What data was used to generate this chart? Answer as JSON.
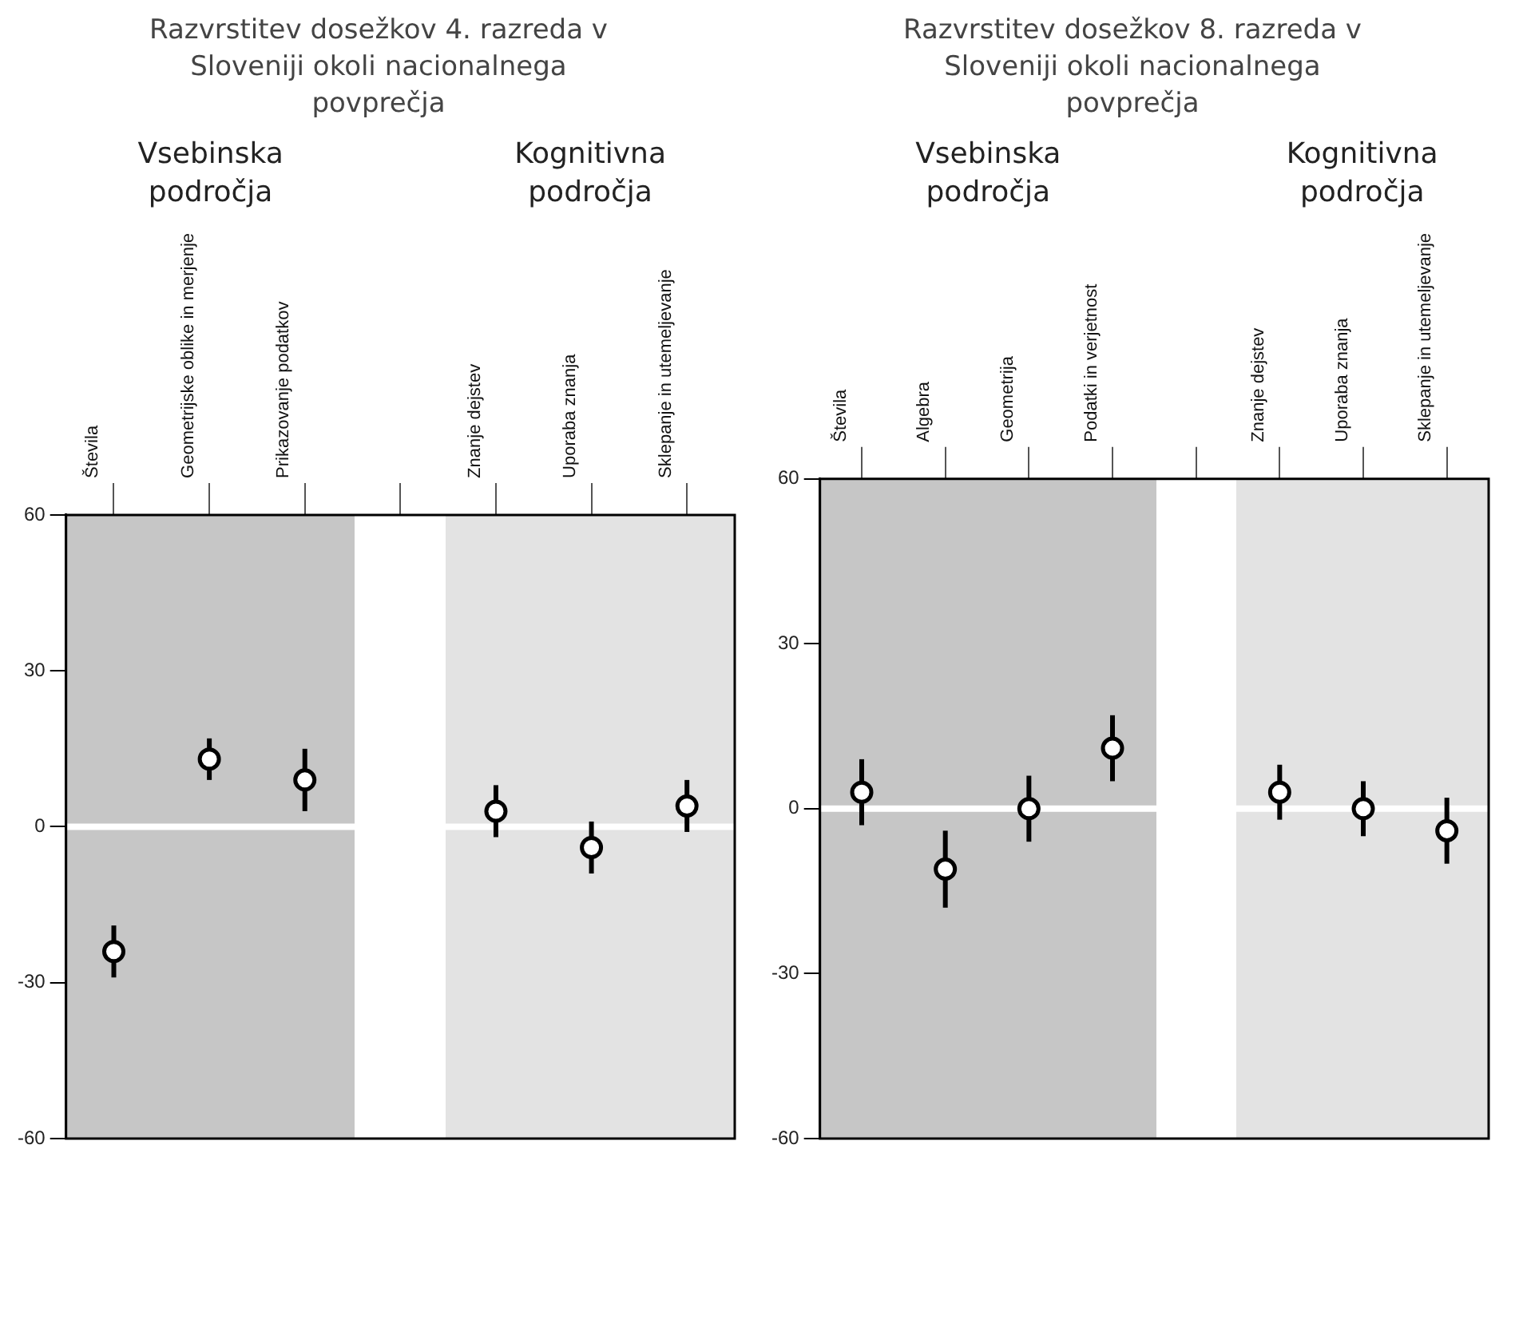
{
  "chart_data": [
    {
      "type": "scatter",
      "title": "Razvrstitev dosežkov 4. razreda v Sloveniji okoli nacionalnega povprečja",
      "categories": [
        "Števila",
        "Geometrijske oblike in merjenje",
        "Prikazovanje podatkov",
        null,
        "Znanje dejstev",
        "Uporaba znanja",
        "Sklepanje in utemeljevanje"
      ],
      "values": [
        -24,
        13,
        9,
        null,
        3,
        -4,
        4
      ],
      "errors": [
        5,
        4,
        6,
        null,
        5,
        5,
        5
      ],
      "color": "#000000",
      "marker": "circle",
      "ylim": [
        -60,
        60
      ],
      "yticks": [
        -60,
        -30,
        0,
        30,
        60
      ],
      "annotations": [
        "Vsebinska področja",
        "Kognitivna področja"
      ],
      "ref_lines": [
        {
          "axis": "y",
          "value": 0,
          "color": "#ffffff"
        }
      ]
    },
    {
      "type": "scatter",
      "title": "Razvrstitev dosežkov 8. razreda v Sloveniji okoli nacionalnega povprečja",
      "categories": [
        "Števila",
        "Algebra",
        "Geometrija",
        "Podatki in verjetnost",
        null,
        "Znanje dejstev",
        "Uporaba znanja",
        "Sklepanje in utemeljevanje"
      ],
      "values": [
        3,
        -11,
        0,
        11,
        null,
        3,
        0,
        -4
      ],
      "errors": [
        6,
        7,
        6,
        6,
        null,
        5,
        5,
        6
      ],
      "color": "#000000",
      "marker": "circle",
      "ylim": [
        -60,
        60
      ],
      "yticks": [
        -60,
        -30,
        0,
        30,
        60
      ],
      "annotations": [
        "Vsebinska področja",
        "Kognitivna področja"
      ],
      "ref_lines": [
        {
          "axis": "y",
          "value": 0,
          "color": "#ffffff"
        }
      ]
    }
  ]
}
